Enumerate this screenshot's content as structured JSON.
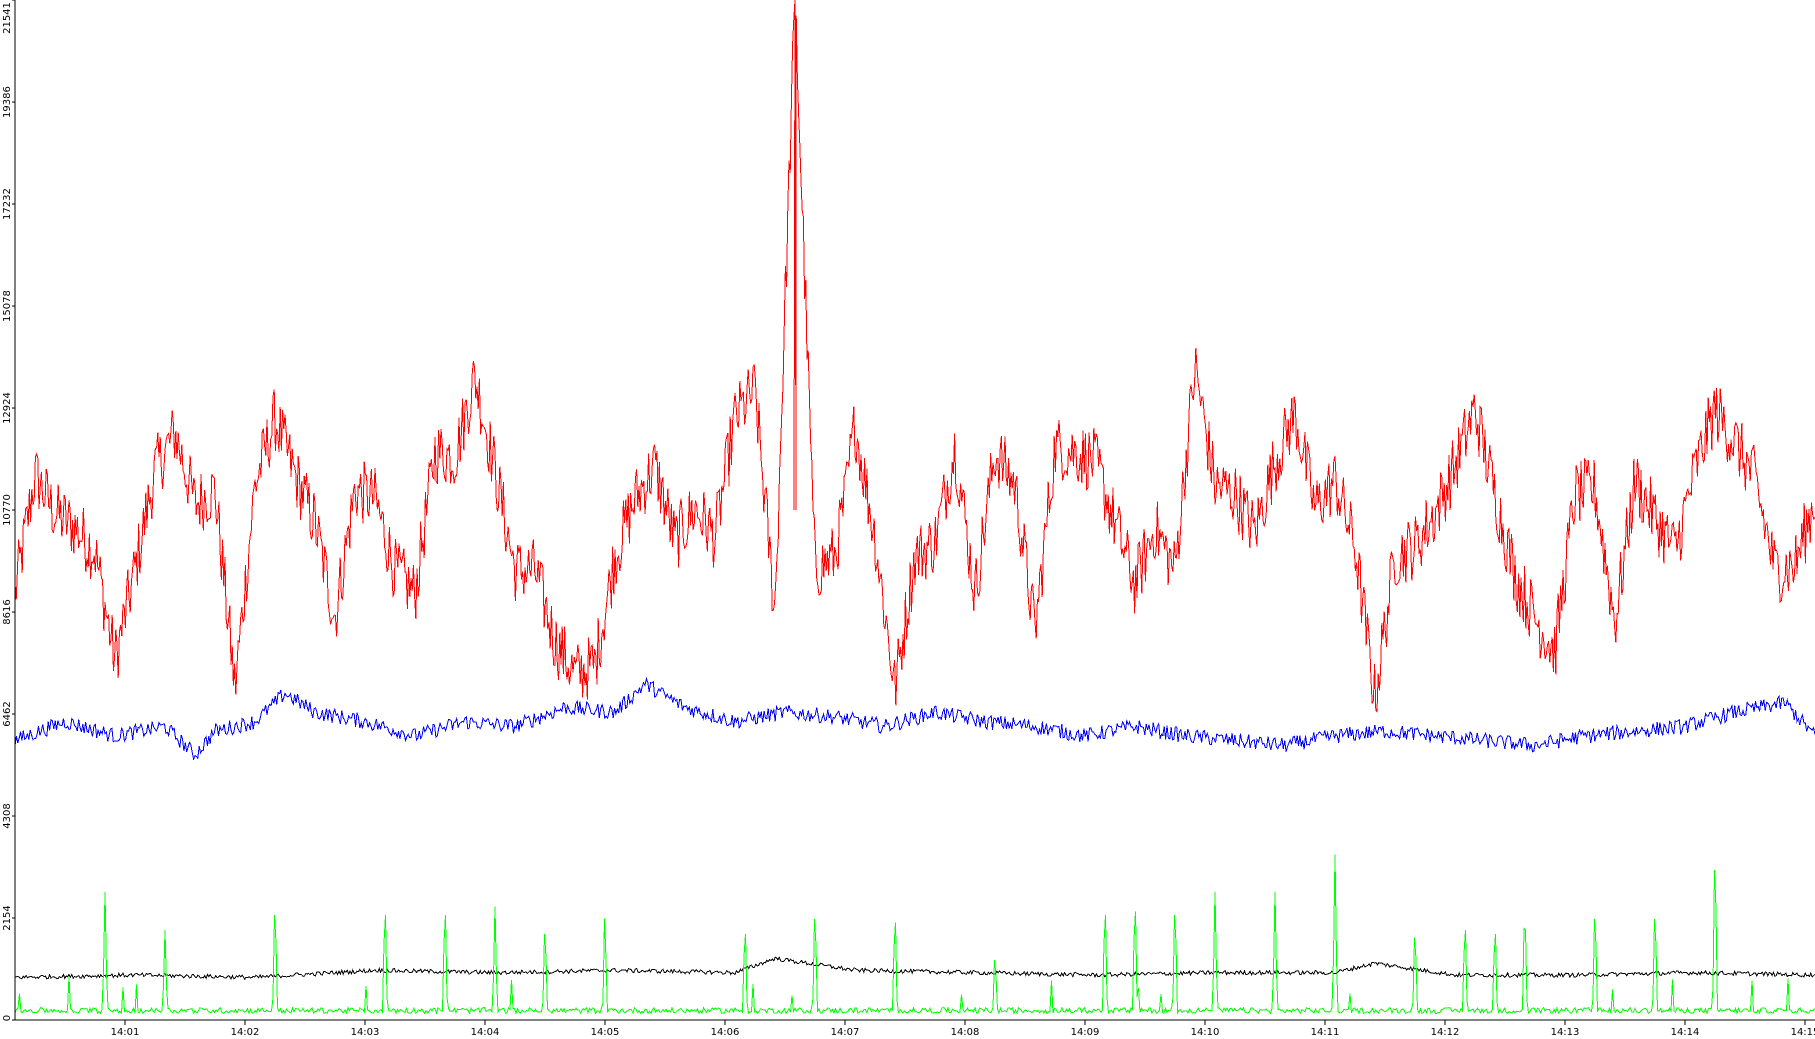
{
  "chart_data": {
    "type": "line",
    "title": "",
    "xlabel": "",
    "ylabel": "",
    "ylim": [
      0,
      21541
    ],
    "y_ticks": [
      {
        "value": 0,
        "label": "0"
      },
      {
        "value": 2154,
        "label": "2154"
      },
      {
        "value": 4308,
        "label": "4308"
      },
      {
        "value": 6462,
        "label": "6462"
      },
      {
        "value": 8616,
        "label": "8616"
      },
      {
        "value": 10770,
        "label": "10770"
      },
      {
        "value": 12924,
        "label": "12924"
      },
      {
        "value": 15078,
        "label": "15078"
      },
      {
        "value": 17232,
        "label": "17232"
      },
      {
        "value": 19386,
        "label": "19386"
      },
      {
        "value": 21541,
        "label": "21541"
      }
    ],
    "xlim": [
      "14:00:05",
      "14:15:05"
    ],
    "x_ticks": [
      {
        "value": "14:01",
        "label": "14:01"
      },
      {
        "value": "14:02",
        "label": "14:02"
      },
      {
        "value": "14:03",
        "label": "14:03"
      },
      {
        "value": "14:04",
        "label": "14:04"
      },
      {
        "value": "14:05",
        "label": "14:05"
      },
      {
        "value": "14:06",
        "label": "14:06"
      },
      {
        "value": "14:07",
        "label": "14:07"
      },
      {
        "value": "14:08",
        "label": "14:08"
      },
      {
        "value": "14:09",
        "label": "14:09"
      },
      {
        "value": "14:10",
        "label": "14:10"
      },
      {
        "value": "14:11",
        "label": "14:11"
      },
      {
        "value": "14:12",
        "label": "14:12"
      },
      {
        "value": "14:13",
        "label": "14:13"
      },
      {
        "value": "14:14",
        "label": "14:14"
      },
      {
        "value": "14:15",
        "label": "14:15"
      }
    ],
    "grid": false,
    "legend": "none",
    "series": [
      {
        "color": "#ff0000",
        "x": [
          "14:00:05",
          "14:00:15",
          "14:00:25",
          "14:00:35",
          "14:00:45",
          "14:00:55",
          "14:01:05",
          "14:01:15",
          "14:01:25",
          "14:01:35",
          "14:01:45",
          "14:01:55",
          "14:02:05",
          "14:02:15",
          "14:02:25",
          "14:02:35",
          "14:02:45",
          "14:02:55",
          "14:03:05",
          "14:03:15",
          "14:03:25",
          "14:03:35",
          "14:03:45",
          "14:03:55",
          "14:04:05",
          "14:04:15",
          "14:04:25",
          "14:04:35",
          "14:04:45",
          "14:04:55",
          "14:05:05",
          "14:05:15",
          "14:05:25",
          "14:05:35",
          "14:05:45",
          "14:05:55",
          "14:06:05",
          "14:06:15",
          "14:06:25",
          "14:06:35",
          "14:06:45",
          "14:06:55",
          "14:07:00",
          "14:07:05",
          "14:07:15",
          "14:07:25",
          "14:07:35",
          "14:07:45",
          "14:07:55",
          "14:08:05",
          "14:08:15",
          "14:08:25",
          "14:08:35",
          "14:08:45",
          "14:08:55",
          "14:09:05",
          "14:09:15",
          "14:09:25",
          "14:09:35",
          "14:09:45",
          "14:09:55",
          "14:10:05",
          "14:10:15",
          "14:10:25",
          "14:10:35",
          "14:10:45",
          "14:10:55",
          "14:11:05",
          "14:11:15",
          "14:11:25",
          "14:11:35",
          "14:11:45",
          "14:11:55",
          "14:12:05",
          "14:12:15",
          "14:12:25",
          "14:12:35",
          "14:12:45",
          "14:12:55",
          "14:13:05",
          "14:13:15",
          "14:13:25",
          "14:13:35",
          "14:13:45",
          "14:13:55",
          "14:14:05",
          "14:14:15",
          "14:14:25",
          "14:14:35",
          "14:14:45",
          "14:14:55",
          "14:15:05"
        ],
        "values": [
          9000,
          11500,
          10700,
          10400,
          9900,
          7600,
          9500,
          11600,
          12400,
          10900,
          11200,
          7000,
          11300,
          12700,
          11500,
          10500,
          8500,
          11200,
          11000,
          9500,
          9000,
          12000,
          11900,
          13600,
          11600,
          9500,
          9500,
          8000,
          7300,
          7500,
          9800,
          11000,
          11700,
          10100,
          10800,
          10200,
          12700,
          13300,
          8600,
          21541,
          9500,
          9800,
          11000,
          12600,
          10200,
          7000,
          9800,
          10100,
          12100,
          9000,
          12000,
          11300,
          8200,
          12100,
          12000,
          11800,
          10500,
          9200,
          10400,
          9500,
          13800,
          11300,
          11100,
          10300,
          11800,
          12800,
          10800,
          11400,
          10000,
          6800,
          9800,
          10000,
          10700,
          11700,
          12900,
          11100,
          9400,
          8500,
          7800,
          11100,
          11200,
          8400,
          11400,
          10600,
          9900,
          11600,
          12900,
          12200,
          11400,
          9500,
          9600,
          11000
        ],
        "spike": false
      },
      {
        "color": "#0000ff",
        "x": [
          "14:00:05",
          "14:00:30",
          "14:00:55",
          "14:01:20",
          "14:01:35",
          "14:01:45",
          "14:02:05",
          "14:02:20",
          "14:02:35",
          "14:03:00",
          "14:03:25",
          "14:03:50",
          "14:04:15",
          "14:04:40",
          "14:05:05",
          "14:05:20",
          "14:05:40",
          "14:06:05",
          "14:06:30",
          "14:06:55",
          "14:07:20",
          "14:07:45",
          "14:08:10",
          "14:08:35",
          "14:09:00",
          "14:09:25",
          "14:09:50",
          "14:10:15",
          "14:10:40",
          "14:11:05",
          "14:11:30",
          "14:11:55",
          "14:12:20",
          "14:12:45",
          "14:13:10",
          "14:13:35",
          "14:14:00",
          "14:14:25",
          "14:14:50",
          "14:15:05"
        ],
        "values": [
          5900,
          6300,
          6000,
          6200,
          5600,
          6100,
          6300,
          6900,
          6500,
          6300,
          6000,
          6300,
          6200,
          6600,
          6500,
          7100,
          6600,
          6300,
          6500,
          6400,
          6200,
          6500,
          6300,
          6200,
          6000,
          6200,
          6000,
          5900,
          5800,
          6000,
          6100,
          6000,
          5900,
          5800,
          6000,
          6100,
          6200,
          6500,
          6700,
          6000
        ]
      },
      {
        "color": "#000000",
        "x": [
          "14:00:05",
          "14:01:05",
          "14:02:05",
          "14:03:05",
          "14:04:05",
          "14:05:05",
          "14:06:05",
          "14:06:25",
          "14:07:05",
          "14:08:05",
          "14:09:05",
          "14:10:05",
          "14:11:05",
          "14:11:25",
          "14:12:05",
          "14:13:05",
          "14:14:05",
          "14:15:05"
        ],
        "values": [
          900,
          950,
          900,
          1050,
          1000,
          1050,
          1000,
          1300,
          1050,
          1000,
          950,
          1000,
          1000,
          1200,
          950,
          950,
          1000,
          950
        ]
      },
      {
        "color": "#00ff00",
        "baseline": 200,
        "peaks": [
          {
            "x": "14:00:50",
            "value": 2700
          },
          {
            "x": "14:01:20",
            "value": 1900
          },
          {
            "x": "14:02:15",
            "value": 2800
          },
          {
            "x": "14:03:10",
            "value": 2800
          },
          {
            "x": "14:03:40",
            "value": 2800
          },
          {
            "x": "14:04:05",
            "value": 2400
          },
          {
            "x": "14:04:30",
            "value": 2300
          },
          {
            "x": "14:05:00",
            "value": 2200
          },
          {
            "x": "14:06:10",
            "value": 2300
          },
          {
            "x": "14:06:45",
            "value": 2700
          },
          {
            "x": "14:07:25",
            "value": 2600
          },
          {
            "x": "14:08:15",
            "value": 1600
          },
          {
            "x": "14:09:10",
            "value": 2800
          },
          {
            "x": "14:09:25",
            "value": 2900
          },
          {
            "x": "14:09:45",
            "value": 2800
          },
          {
            "x": "14:10:05",
            "value": 2700
          },
          {
            "x": "14:10:35",
            "value": 2700
          },
          {
            "x": "14:11:05",
            "value": 3500
          },
          {
            "x": "14:11:45",
            "value": 2200
          },
          {
            "x": "14:12:10",
            "value": 2400
          },
          {
            "x": "14:12:25",
            "value": 2300
          },
          {
            "x": "14:12:40",
            "value": 2400
          },
          {
            "x": "14:13:15",
            "value": 2700
          },
          {
            "x": "14:13:45",
            "value": 2700
          },
          {
            "x": "14:14:15",
            "value": 4000
          }
        ]
      }
    ]
  }
}
